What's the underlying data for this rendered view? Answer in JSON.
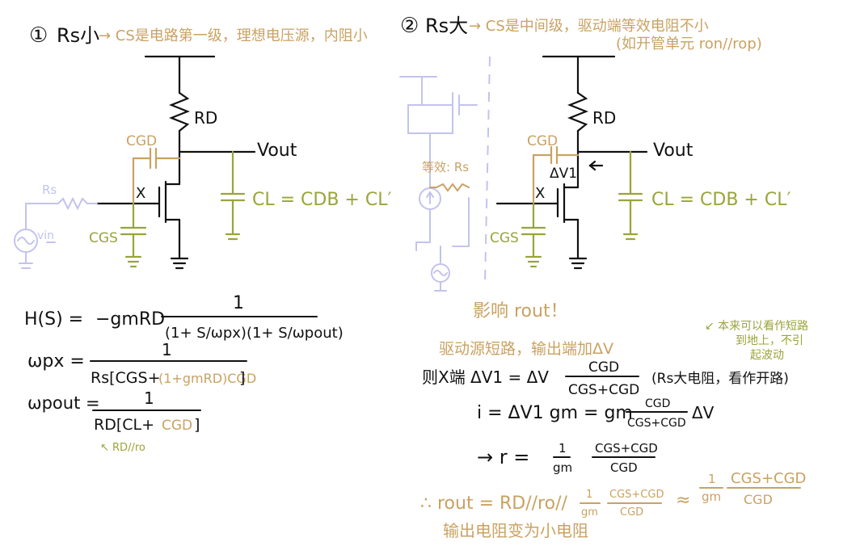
{
  "colors": {
    "ink": "#111111",
    "gold": "#c9a262",
    "olive": "#9aa43a",
    "lavender": "#c3c3ee"
  },
  "left": {
    "heading_num": "①",
    "heading_label": "Rs小",
    "heading_note": "→ CS是电路第一级，理想电压源，内阻小",
    "rd": "RD",
    "cgd": "CGD",
    "vout": "Vout",
    "x": "X",
    "cgs": "CGS",
    "rs": "Rs",
    "vin": "vin",
    "cl": "CL = CDB + CL′"
  },
  "right": {
    "heading_num": "②",
    "heading_label": "Rs大",
    "heading_note": "→ CS是中间级，驱动端等效电阻不小",
    "heading_note2": "(如开管单元 ron//rop)",
    "rd": "RD",
    "cgd": "CGD",
    "vout": "Vout",
    "dv1": "ΔV1",
    "x": "X",
    "cgs": "CGS",
    "rs_note": "等效: Rs",
    "cl": "CL = CDB + CL′"
  },
  "eq": {
    "hs_lhs": "H(S) =",
    "hs_num_left": "−gmRD",
    "hs_num": "1",
    "hs_den": "(1+ S/ωpx)(1+ S/ωpout)",
    "wpx_lhs": "ωpx =",
    "wpx_num": "1",
    "wpx_den_a": "Rs[CGS+",
    "wpx_den_b": "(1+gmRD)CGD",
    "wpx_den_c": "]",
    "wpout_lhs": "ωpout =",
    "wpout_num": "1",
    "wpout_den_a": "RD[CL+",
    "wpout_den_b": "CGD",
    "wpout_den_c": "]",
    "rd_note": "↖ RD//ro"
  },
  "notes": {
    "affect": "影响 rout！",
    "drive": "驱动源短路，输出端加ΔV",
    "side1": "↙ 本来可以看作短路",
    "side2": "到地上，不引",
    "side3": "起波动",
    "dv1_lhs": "则X端 ΔV1 = ΔV",
    "dv1_num": "CGD",
    "dv1_den": "CGS+CGD",
    "dv1_note": "(Rs大电阻，看作开路)",
    "i_lhs": "i = ΔV1 gm = gm",
    "i_num": "CGD",
    "i_den": "CGS+CGD",
    "i_tail": "ΔV",
    "r_lhs": "→ r =",
    "r_num1": "1",
    "r_den1": "gm",
    "r_num2": "CGS+CGD",
    "r_den2": "CGD",
    "rout_lhs": "∴ rout = RD//ro//",
    "rout_n1": "1",
    "rout_d1": "gm",
    "rout_n2": "CGS+CGD",
    "rout_d2": "CGD",
    "approx": "≈",
    "ap_n1": "1",
    "ap_d1": "gm",
    "ap_n2": "CGS+CGD",
    "ap_d2": "CGD",
    "summary": "输出电阻变为小电阻"
  }
}
